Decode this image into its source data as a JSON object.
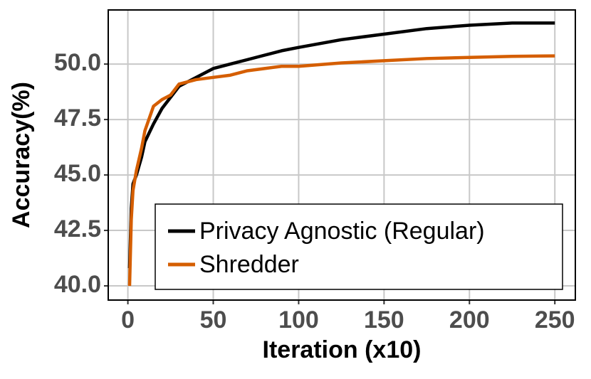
{
  "chart_data": {
    "type": "line",
    "x_label": "Iteration (x10)",
    "y_label": "Accuracy(%)",
    "x": [
      1,
      2,
      3,
      5,
      8,
      10,
      15,
      20,
      25,
      30,
      35,
      40,
      50,
      60,
      70,
      80,
      90,
      100,
      125,
      150,
      175,
      200,
      225,
      250
    ],
    "series": [
      {
        "name": "Privacy Agnostic (Regular)",
        "color": "#000000",
        "values": [
          40.8,
          43.5,
          44.6,
          45.0,
          45.8,
          46.5,
          47.3,
          48.0,
          48.5,
          49.0,
          49.2,
          49.4,
          49.8,
          50.0,
          50.2,
          50.4,
          50.6,
          50.75,
          51.1,
          51.35,
          51.6,
          51.75,
          51.85,
          51.85
        ]
      },
      {
        "name": "Shredder",
        "color": "#d55e00",
        "values": [
          40.0,
          43.0,
          44.3,
          45.2,
          46.2,
          47.0,
          48.1,
          48.4,
          48.6,
          49.1,
          49.2,
          49.3,
          49.4,
          49.5,
          49.7,
          49.8,
          49.9,
          49.9,
          50.05,
          50.15,
          50.25,
          50.3,
          50.35,
          50.37
        ]
      }
    ],
    "xlim": [
      -11.5,
      262
    ],
    "ylim": [
      39.36,
      52.44
    ],
    "xticks": [
      0,
      50,
      100,
      150,
      200,
      250
    ],
    "yticks": [
      {
        "value": 40,
        "label": "40.0"
      },
      42.5,
      {
        "value": 45,
        "label": "45.0"
      },
      47.5,
      {
        "value": 50,
        "label": "50.0"
      }
    ],
    "grid": true,
    "legend": "bottom-right"
  }
}
